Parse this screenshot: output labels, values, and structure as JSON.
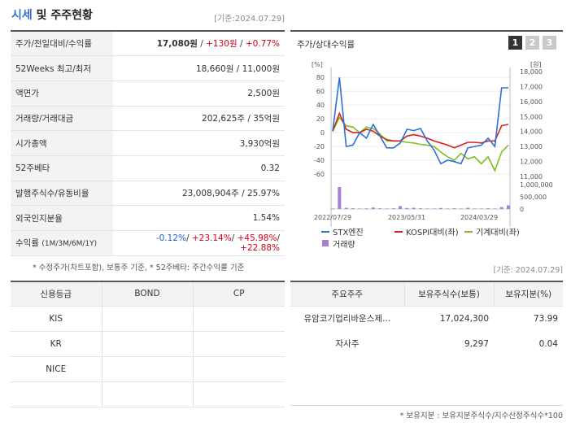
{
  "header": {
    "title_a": "시세",
    "title_b": " 및 주주현황",
    "date": "[기준:2024.07.29]"
  },
  "market_rows": [
    {
      "label": "주가/전일대비/수익률",
      "price": "17,080원",
      "change": "+130원",
      "rate": "+0.77%"
    },
    {
      "label": "52Weeks 최고/최저",
      "value": "18,660원 / 11,000원"
    },
    {
      "label": "액면가",
      "value": "2,500원"
    },
    {
      "label": "거래량/거래대금",
      "value": "202,625주 / 35억원"
    },
    {
      "label": "시가총액",
      "value": "3,930억원"
    },
    {
      "label": "52주베타",
      "value": "0.32"
    },
    {
      "label": "발행주식수/유동비율",
      "value": "23,008,904주 / 25.97%"
    },
    {
      "label": "외국인지분율",
      "value": "1.54%"
    }
  ],
  "returns": {
    "label": "수익률",
    "label_sub": "(1M/3M/6M/1Y)",
    "m1": "-0.12%",
    "m3": "+23.14%",
    "m6": "+45.98%",
    "y1": "+22.88%",
    "sep": "/ "
  },
  "note1": "* 수정주가(차트포함), 보통주 기준, * 52주베타: 주간수익률 기준",
  "chart": {
    "title": "주가/상대수익률",
    "tabs": [
      "1",
      "2",
      "3"
    ],
    "active_tab": "1",
    "colors": {
      "stx": "#2f6fd6",
      "kospi": "#d4231c",
      "sector": "#7fbf1f",
      "volume": "#a77fd6"
    }
  },
  "chart_data": {
    "type": "line",
    "left_unit": "[%]",
    "right_unit": "[원]",
    "left_ticks": [
      80,
      60,
      40,
      20,
      0,
      -20,
      -40,
      -60
    ],
    "right_ticks": [
      "18,000",
      "17,000",
      "16,000",
      "15,000",
      "14,000",
      "13,000",
      "12,000",
      "11,000"
    ],
    "volume_ticks": [
      "1,000,000",
      "500,000",
      "0"
    ],
    "x_ticks": [
      "2022/07/29",
      "2023/05/31",
      "2024/03/29"
    ],
    "ylim": [
      -60,
      85
    ],
    "volume_max": 1000000,
    "series": [
      {
        "name": "STX엔진",
        "values": [
          2,
          80,
          -20,
          -18,
          0,
          -8,
          12,
          -5,
          -22,
          -22,
          -15,
          5,
          3,
          6,
          -12,
          -25,
          -45,
          -40,
          -42,
          -45,
          -22,
          -20,
          -18,
          -8,
          -20,
          65,
          65
        ]
      },
      {
        "name": "KOSPI대비(좌)",
        "values": [
          2,
          28,
          5,
          0,
          0,
          5,
          2,
          -5,
          -10,
          -12,
          -12,
          -5,
          -3,
          -5,
          -8,
          -12,
          -15,
          -18,
          -22,
          -18,
          -14,
          -14,
          -15,
          -12,
          -12,
          10,
          12
        ]
      },
      {
        "name": "기계대비(좌)",
        "values": [
          2,
          22,
          10,
          8,
          0,
          8,
          6,
          -2,
          -12,
          -12,
          -12,
          -14,
          -15,
          -17,
          -18,
          -20,
          -28,
          -35,
          -40,
          -30,
          -38,
          -35,
          -45,
          -35,
          -55,
          -28,
          -18
        ]
      }
    ],
    "volume": [
      20000,
      900000,
      50000,
      30000,
      20000,
      25000,
      60000,
      30000,
      20000,
      30000,
      120000,
      40000,
      50000,
      30000,
      20000,
      20000,
      40000,
      20000,
      30000,
      20000,
      50000,
      20000,
      20000,
      30000,
      20000,
      80000,
      150000
    ],
    "legend": [
      {
        "name": "STX엔진",
        "kind": "line",
        "color": "#2f6fd6"
      },
      {
        "name": "KOSPI대비(좌)",
        "kind": "line",
        "color": "#d4231c"
      },
      {
        "name": "기계대비(좌)",
        "kind": "line",
        "color": "#7fbf1f"
      },
      {
        "name": "거래량",
        "kind": "box",
        "color": "#a77fd6"
      }
    ]
  },
  "date2": "[기준: 2024.07.29]",
  "credit": {
    "headers": [
      "신용등급",
      "BOND",
      "CP"
    ],
    "rows": [
      [
        "KIS",
        "",
        ""
      ],
      [
        "KR",
        "",
        ""
      ],
      [
        "NICE",
        "",
        ""
      ],
      [
        "",
        "",
        ""
      ]
    ]
  },
  "holders": {
    "headers": [
      "주요주주",
      "보유주식수(보통)",
      "보유지분(%)"
    ],
    "rows": [
      {
        "name": "유암코기업리바운스제…",
        "shares": "17,024,300",
        "pct": "73.99"
      },
      {
        "name": "자사주",
        "shares": "9,297",
        "pct": "0.04"
      }
    ]
  },
  "note2": "* 보유지분 : 보유지분주식수/지수산정주식수*100"
}
